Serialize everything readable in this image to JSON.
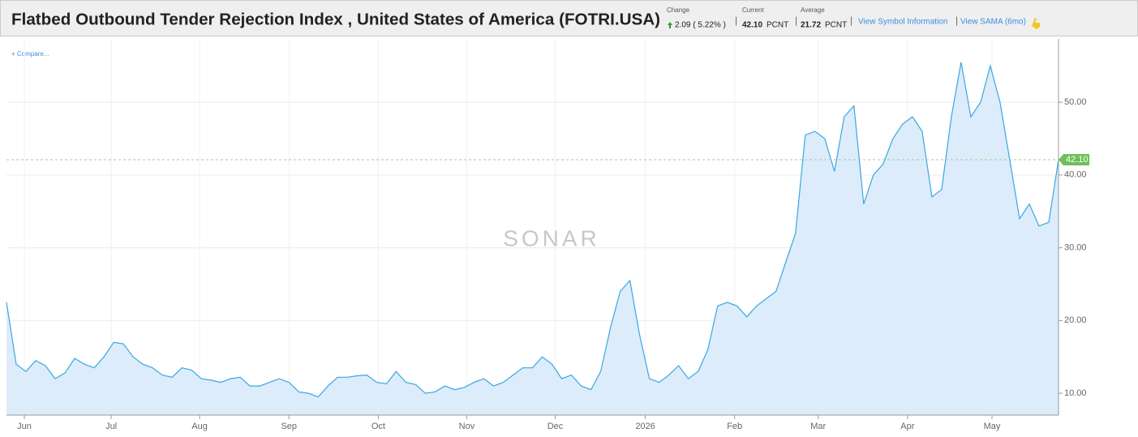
{
  "header": {
    "title": "Flatbed Outbound Tender Rejection Index , United States of America (FOTRI.USA)",
    "change_label": "Change",
    "change_value": "2.09 ( 5.22% )",
    "current_label": "Current",
    "current_value": "42.10",
    "current_unit": "PCNT",
    "average_label": "Average",
    "average_value": "21.72",
    "average_unit": "PCNT",
    "link_symbol": "View Symbol Information",
    "link_sama": "View SAMA (6mo)"
  },
  "compare": "+ Compare...",
  "watermark": "SONAR",
  "chart_data": {
    "type": "area",
    "color": "#3aa6e3",
    "fill": "#dcecfb",
    "values": [
      22.5,
      14,
      13,
      14.5,
      13.8,
      12,
      12.8,
      14.8,
      14,
      13.5,
      15,
      17,
      16.8,
      15,
      14,
      13.5,
      12.5,
      12.2,
      13.5,
      13.2,
      12,
      11.8,
      11.5,
      12,
      12.2,
      11,
      11,
      11.5,
      12,
      11.5,
      10.2,
      10,
      9.5,
      11,
      12.2,
      12.2,
      12.4,
      12.5,
      11.5,
      11.3,
      13,
      11.5,
      11.2,
      10,
      10.2,
      11,
      10.5,
      10.8,
      11.5,
      12,
      11,
      11.5,
      12.5,
      13.5,
      13.5,
      15,
      14,
      12,
      12.5,
      11,
      10.5,
      13,
      19,
      24,
      25.5,
      18,
      12,
      11.5,
      12.5,
      13.8,
      12,
      13,
      16,
      22,
      22.5,
      22,
      20.5,
      22,
      23,
      24,
      28,
      32,
      45.5,
      46,
      45,
      40.5,
      48,
      49.5,
      36,
      40,
      41.5,
      45,
      47,
      48,
      46,
      37,
      38,
      48,
      55.5,
      48,
      50,
      55,
      50,
      42,
      34,
      36,
      33,
      33.5,
      42.1
    ],
    "xlim": [
      0,
      108
    ],
    "xticks": [
      {
        "value": 1.83,
        "label": "Jun"
      },
      {
        "value": 10.75,
        "label": "Jul"
      },
      {
        "value": 19.83,
        "label": "Aug"
      },
      {
        "value": 29,
        "label": "Sep"
      },
      {
        "value": 38.17,
        "label": "Oct"
      },
      {
        "value": 47.25,
        "label": "Nov"
      },
      {
        "value": 56.33,
        "label": "Dec"
      },
      {
        "value": 65.58,
        "label": "2026"
      },
      {
        "value": 74.75,
        "label": "Feb"
      },
      {
        "value": 83.33,
        "label": "Mar"
      },
      {
        "value": 92.5,
        "label": "Apr"
      },
      {
        "value": 101.17,
        "label": "May"
      }
    ],
    "ylim": [
      7,
      58.7
    ],
    "yticks": [
      {
        "value": 10,
        "label": "10.00"
      },
      {
        "value": 20,
        "label": "20.00"
      },
      {
        "value": 30,
        "label": "30.00"
      },
      {
        "value": 40,
        "label": "40.00"
      },
      {
        "value": 50,
        "label": "50.00"
      }
    ],
    "current": {
      "value": 42.1,
      "label": "42.10"
    },
    "grid": true
  }
}
